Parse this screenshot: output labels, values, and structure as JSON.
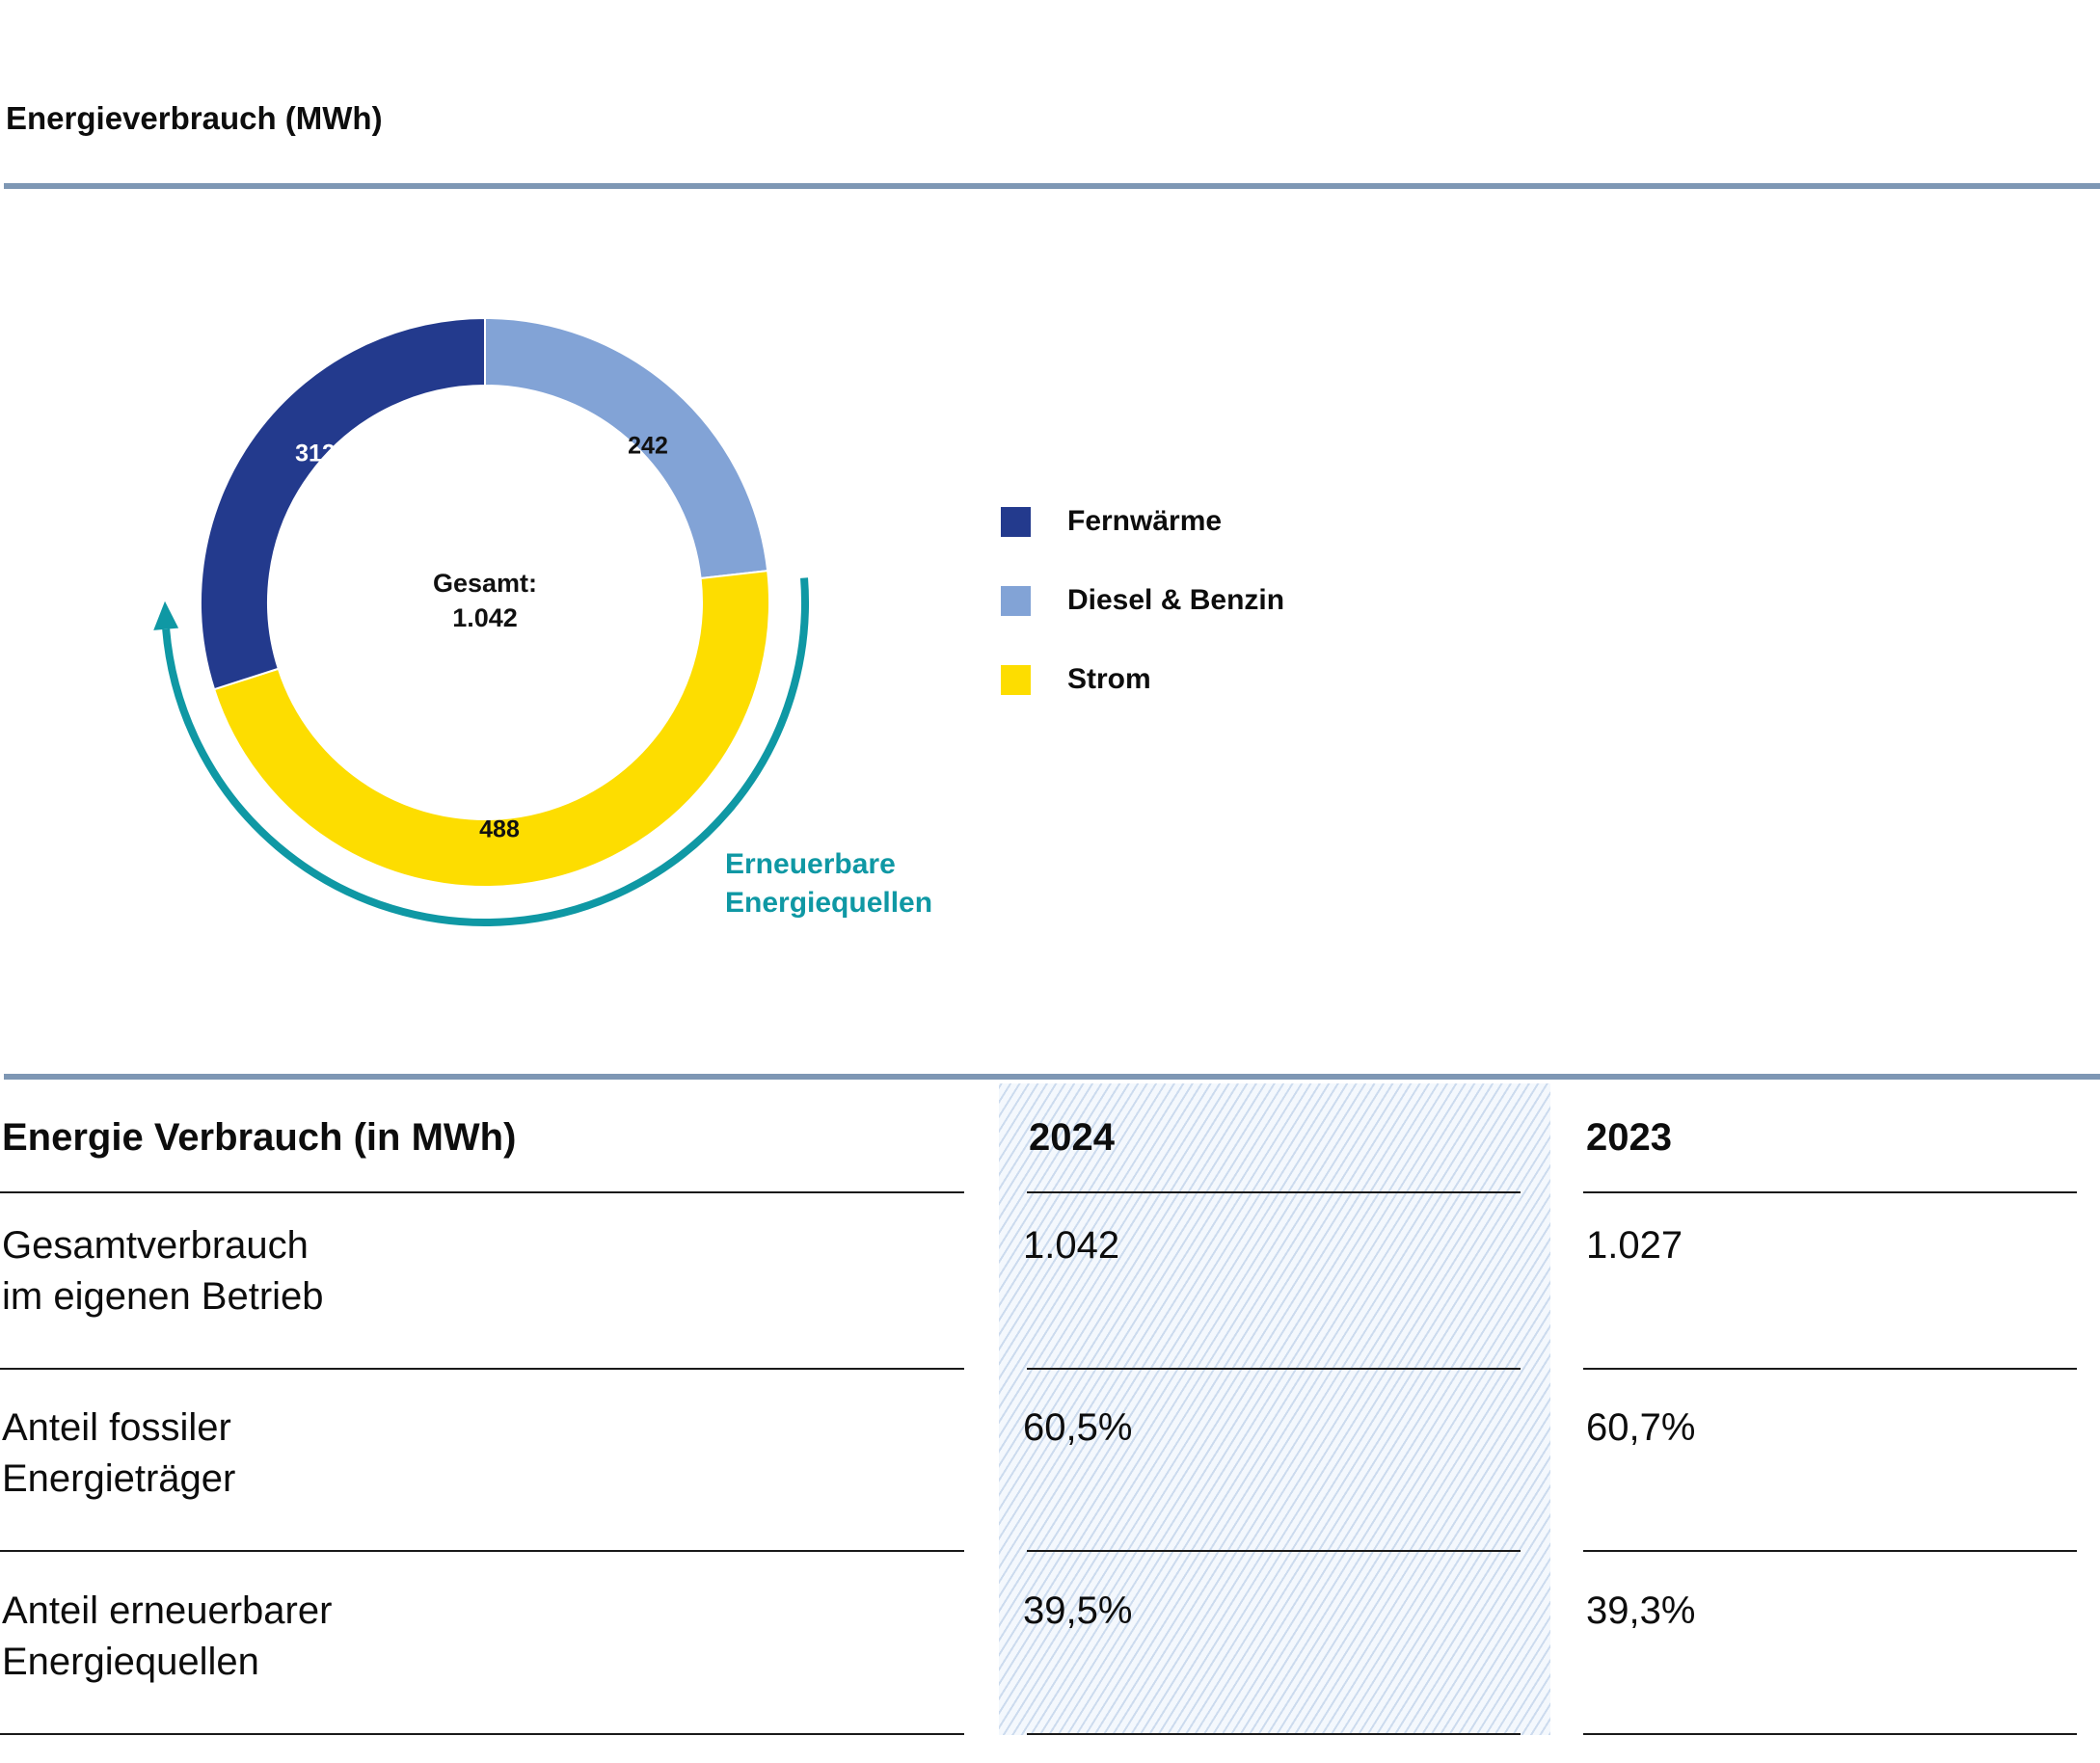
{
  "header": {
    "title": "Energieverbrauch (MWh)"
  },
  "chart_data": {
    "type": "donut",
    "title": "Energieverbrauch (MWh)",
    "center_label": [
      "Gesamt:",
      "1.042"
    ],
    "series": [
      {
        "name": "Fernwärme",
        "value": 312,
        "color": "#233a8d",
        "label_color": "#ffffff"
      },
      {
        "name": "Diesel & Benzin",
        "value": 242,
        "color": "#82a3d6",
        "label_color": "#111111"
      },
      {
        "name": "Strom",
        "value": 488,
        "color": "#fddd00",
        "label_color": "#111111"
      }
    ],
    "annotation": {
      "lines": [
        "Erneuerbare",
        "Energiequellen"
      ],
      "color": "#0f98a4"
    },
    "legend_position": "right"
  },
  "table": {
    "header": [
      "Energie Verbrauch (in MWh)",
      "2024",
      "2023"
    ],
    "rows": [
      {
        "label": [
          "Gesamtverbrauch",
          "im eigenen Betrieb"
        ],
        "v2024": "1.042",
        "v2023": "1.027"
      },
      {
        "label": [
          "Anteil fossiler",
          "Energieträger"
        ],
        "v2024": "60,5%",
        "v2023": "60,7%"
      },
      {
        "label": [
          "Anteil erneuerbarer",
          "Energiequellen"
        ],
        "v2024": "39,5%",
        "v2023": "39,3%"
      }
    ]
  }
}
